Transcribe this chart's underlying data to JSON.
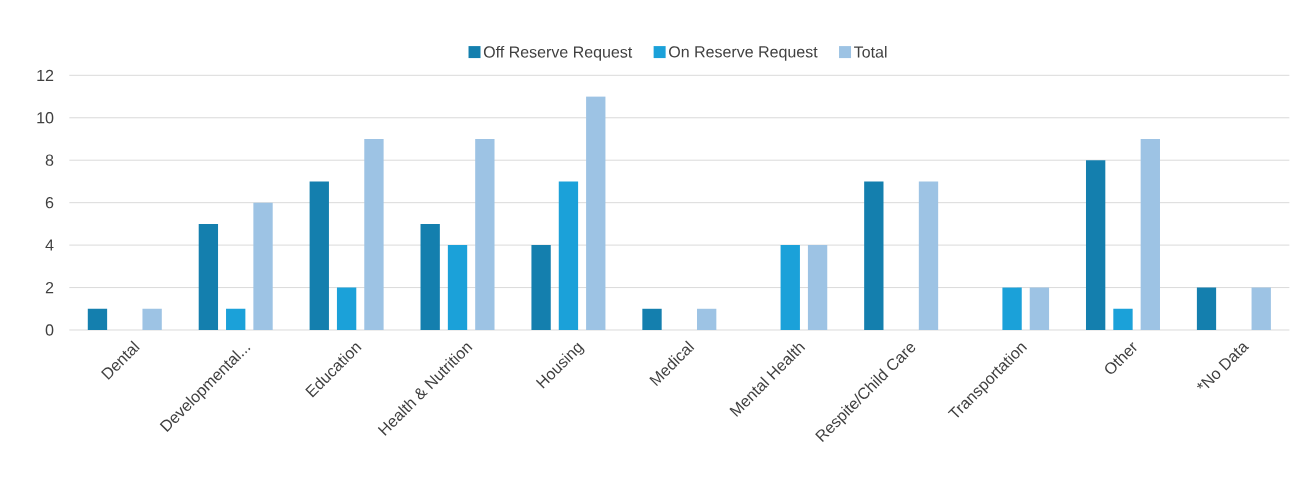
{
  "chart_data": {
    "type": "bar",
    "categories": [
      "Dental",
      "Developmental...",
      "Education",
      "Health & Nutrition",
      "Housing",
      "Medical",
      "Mental Health",
      "Respite/Child Care",
      "Transportation",
      "Other",
      "*No Data"
    ],
    "series": [
      {
        "name": "Off Reserve Request",
        "color": "#147fae",
        "values": [
          1,
          5,
          7,
          5,
          4,
          1,
          null,
          7,
          null,
          8,
          2
        ]
      },
      {
        "name": "On Reserve Request",
        "color": "#1ba1d9",
        "values": [
          null,
          1,
          2,
          4,
          7,
          null,
          4,
          null,
          2,
          1,
          null
        ]
      },
      {
        "name": "Total",
        "color": "#9dc3e4",
        "values": [
          1,
          6,
          9,
          9,
          11,
          1,
          4,
          7,
          2,
          9,
          2
        ]
      }
    ],
    "ylim": [
      0,
      12
    ],
    "yticks": [
      0,
      2,
      4,
      6,
      8,
      10,
      12
    ],
    "grid": "y",
    "legend": "top"
  }
}
